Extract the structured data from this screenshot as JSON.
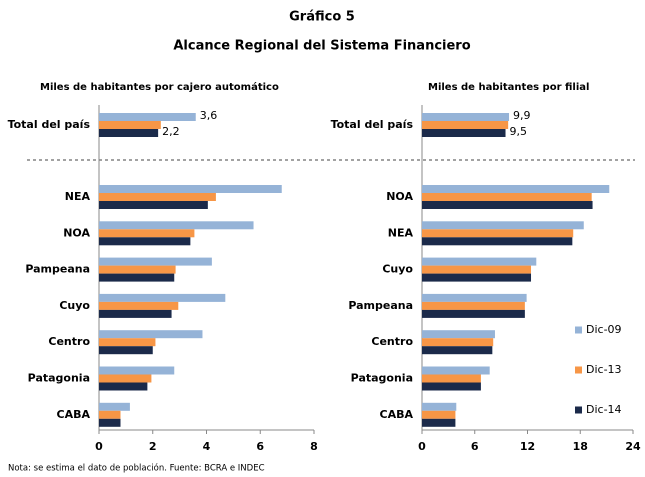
{
  "title": "Gráfico 5",
  "subtitle": "Alcance Regional del Sistema Financiero",
  "note": "Nota: se estima el dato de población. Fuente: BCRA e INDEC",
  "chart_data": [
    {
      "type": "bar",
      "orientation": "horizontal",
      "title": "Miles de habitantes por cajero automático",
      "categories": [
        "Total del país",
        "NEA",
        "NOA",
        "Pampeana",
        "Cuyo",
        "Centro",
        "Patagonia",
        "CABA"
      ],
      "series": [
        {
          "color": "#95b3d7",
          "values": [
            3.6,
            6.8,
            5.75,
            4.2,
            4.7,
            3.85,
            2.8,
            1.15
          ],
          "value_labels": [
            "3,6",
            null,
            null,
            null,
            null,
            null,
            null,
            null
          ]
        },
        {
          "color": "#f79646",
          "values": [
            2.3,
            4.35,
            3.55,
            2.85,
            2.95,
            2.1,
            1.95,
            0.8
          ]
        },
        {
          "color": "#1b2a4a",
          "values": [
            2.2,
            4.05,
            3.4,
            2.8,
            2.7,
            2.0,
            1.8,
            0.8
          ],
          "value_labels": [
            "2,2",
            null,
            null,
            null,
            null,
            null,
            null,
            null
          ]
        }
      ],
      "xlim": [
        0,
        8
      ],
      "xticks": [
        0,
        2,
        4,
        6,
        8
      ]
    },
    {
      "type": "bar",
      "orientation": "horizontal",
      "title": "Miles de habitantes por filial",
      "categories": [
        "Total del país",
        "NOA",
        "NEA",
        "Cuyo",
        "Pampeana",
        "Centro",
        "Patagonia",
        "CABA"
      ],
      "series": [
        {
          "name": "Dic-09",
          "color": "#95b3d7",
          "values": [
            9.9,
            21.3,
            18.4,
            13.0,
            11.9,
            8.3,
            7.7,
            3.9
          ],
          "value_labels": [
            "9,9",
            null,
            null,
            null,
            null,
            null,
            null,
            null
          ]
        },
        {
          "name": "Dic-13",
          "color": "#f79646",
          "values": [
            9.8,
            19.3,
            17.2,
            12.4,
            11.7,
            8.1,
            6.7,
            3.8
          ]
        },
        {
          "name": "Dic-14",
          "color": "#1b2a4a",
          "values": [
            9.5,
            19.4,
            17.1,
            12.4,
            11.7,
            8.0,
            6.7,
            3.8
          ],
          "value_labels": [
            "9,5",
            null,
            null,
            null,
            null,
            null,
            null,
            null
          ]
        }
      ],
      "xlim": [
        0,
        24
      ],
      "xticks": [
        0,
        6,
        12,
        18,
        24
      ],
      "legend": "right"
    }
  ]
}
